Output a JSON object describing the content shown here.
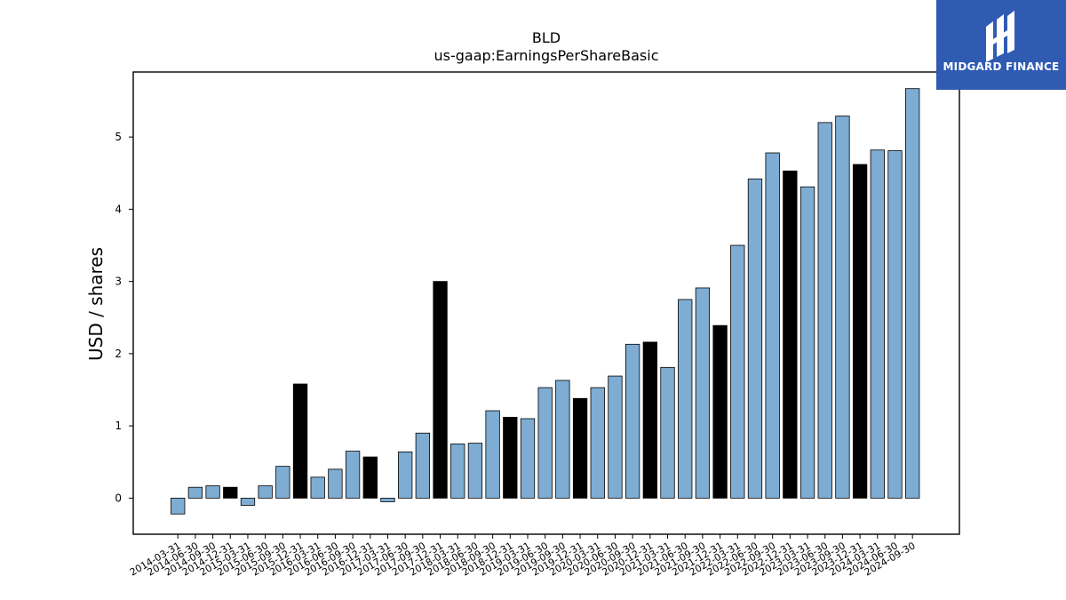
{
  "chart_data": {
    "type": "bar",
    "title": "BLD",
    "subtitle": "us-gaap:EarningsPerShareBasic",
    "xlabel": "",
    "ylabel": "USD / shares",
    "ylim": [
      -0.5,
      5.9
    ],
    "yticks": [
      0,
      1,
      2,
      3,
      4,
      5
    ],
    "grid": false,
    "colors": {
      "quarter": "#7eacd2",
      "annual": "#000000",
      "edge": "#000000"
    },
    "categories": [
      "2014-03-31",
      "2014-06-30",
      "2014-09-30",
      "2014-12-31",
      "2015-03-31",
      "2015-06-30",
      "2015-09-30",
      "2015-12-31",
      "2016-03-31",
      "2016-06-30",
      "2016-09-30",
      "2016-12-31",
      "2017-03-31",
      "2017-06-30",
      "2017-09-30",
      "2017-12-31",
      "2018-03-31",
      "2018-06-30",
      "2018-09-30",
      "2018-12-31",
      "2019-03-31",
      "2019-06-30",
      "2019-09-30",
      "2019-12-31",
      "2020-03-31",
      "2020-06-30",
      "2020-09-30",
      "2020-12-31",
      "2021-03-31",
      "2021-06-30",
      "2021-09-30",
      "2021-12-31",
      "2022-03-31",
      "2022-06-30",
      "2022-09-30",
      "2022-12-31",
      "2023-03-31",
      "2023-06-30",
      "2023-09-30",
      "2023-12-31",
      "2024-03-31",
      "2024-06-30",
      "2024-09-30"
    ],
    "values": [
      -0.22,
      0.15,
      0.17,
      0.15,
      -0.1,
      0.17,
      0.44,
      1.58,
      0.29,
      0.4,
      0.65,
      0.57,
      -0.05,
      0.64,
      0.9,
      3.0,
      0.75,
      0.76,
      1.21,
      1.12,
      1.1,
      1.53,
      1.63,
      1.38,
      1.53,
      1.69,
      2.13,
      2.16,
      1.81,
      2.75,
      2.91,
      2.39,
      3.5,
      4.42,
      4.78,
      4.53,
      4.31,
      5.2,
      5.29,
      4.62,
      4.82,
      4.81,
      5.67
    ],
    "annual_flags": [
      false,
      false,
      false,
      true,
      false,
      false,
      false,
      true,
      false,
      false,
      false,
      true,
      false,
      false,
      false,
      true,
      false,
      false,
      false,
      true,
      false,
      false,
      false,
      true,
      false,
      false,
      false,
      true,
      false,
      false,
      false,
      true,
      false,
      false,
      false,
      true,
      false,
      false,
      false,
      true,
      false,
      false,
      false
    ]
  },
  "logo": {
    "text": "MIDGARD FINANCE",
    "icon": "midgard-logo-icon"
  }
}
